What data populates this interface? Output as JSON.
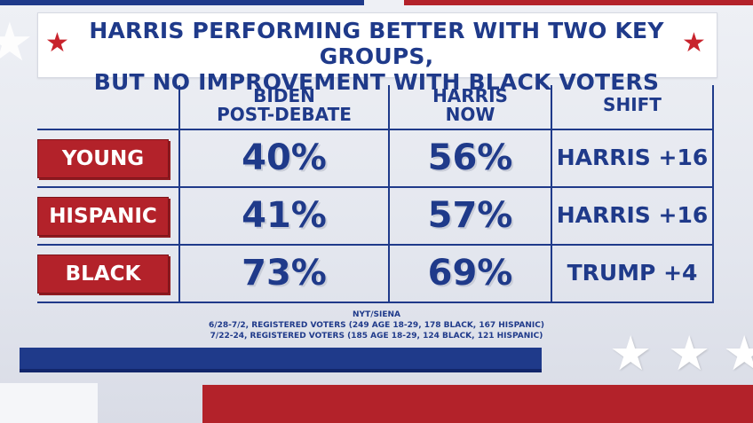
{
  "title": {
    "line1": "HARRIS PERFORMING BETTER WITH TWO KEY GROUPS,",
    "line2": "BUT NO IMPROVEMENT WITH BLACK VOTERS",
    "star_glyph": "★"
  },
  "columns": {
    "biden_line1": "BIDEN",
    "biden_line2": "POST-DEBATE",
    "harris_line1": "HARRIS",
    "harris_line2": "NOW",
    "shift": "SHIFT"
  },
  "rows": [
    {
      "label": "YOUNG",
      "biden": "40%",
      "harris": "56%",
      "shift": "HARRIS +16"
    },
    {
      "label": "HISPANIC",
      "biden": "41%",
      "harris": "57%",
      "shift": "HARRIS +16"
    },
    {
      "label": "BLACK",
      "biden": "73%",
      "harris": "69%",
      "shift": "TRUMP +4"
    }
  ],
  "source": {
    "line1": "NYT/SIENA",
    "line2": "6/28-7/2, REGISTERED VOTERS (249 AGE 18-29, 178 BLACK, 167 HISPANIC)",
    "line3": "7/22-24, REGISTERED VOTERS (185 AGE 18-29, 124 BLACK, 121 HISPANIC)"
  },
  "colors": {
    "navy": "#1f3a8a",
    "red": "#b3222a",
    "white": "#ffffff"
  },
  "chart_data": {
    "type": "table",
    "title": "HARRIS PERFORMING BETTER WITH TWO KEY GROUPS, BUT NO IMPROVEMENT WITH BLACK VOTERS",
    "columns": [
      "BIDEN POST-DEBATE",
      "HARRIS NOW",
      "SHIFT"
    ],
    "categories": [
      "YOUNG",
      "HISPANIC",
      "BLACK"
    ],
    "series": [
      {
        "name": "BIDEN POST-DEBATE",
        "values": [
          40,
          41,
          73
        ]
      },
      {
        "name": "HARRIS NOW",
        "values": [
          56,
          57,
          69
        ]
      }
    ],
    "shift": [
      "HARRIS +16",
      "HARRIS +16",
      "TRUMP +4"
    ]
  }
}
